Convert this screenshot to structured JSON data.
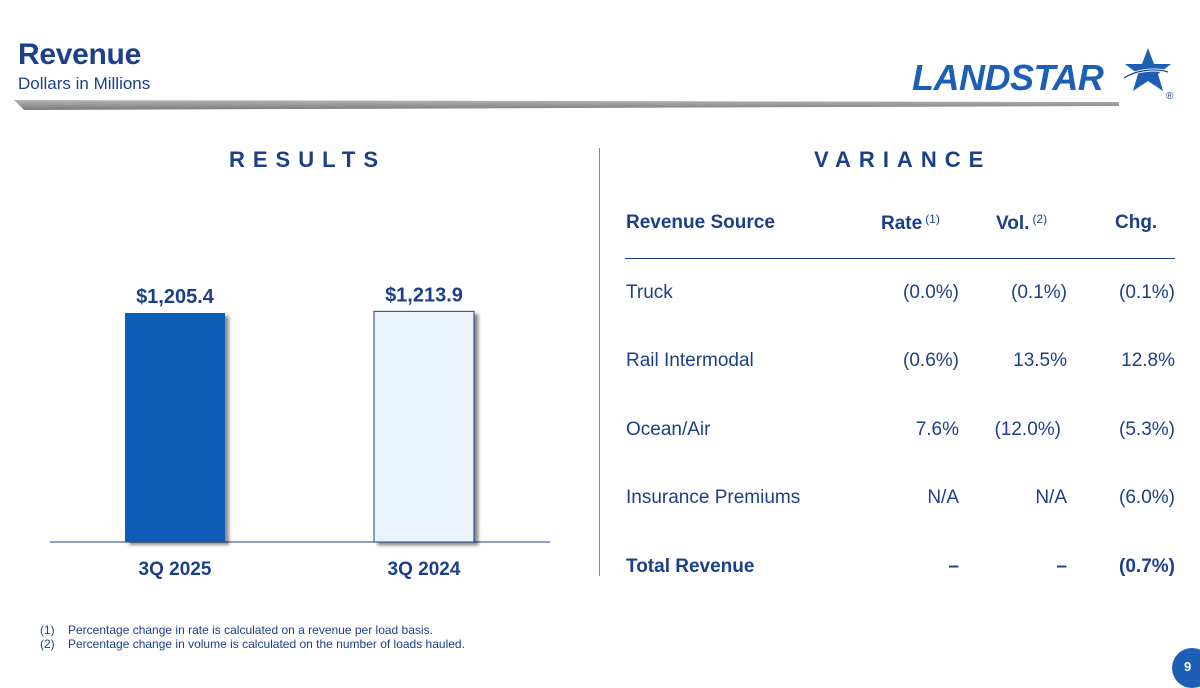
{
  "header": {
    "title": "Revenue",
    "subtitle": "Dollars in Millions",
    "logo_text": "LANDSTAR",
    "trademark": "®"
  },
  "results": {
    "title": "RESULTS"
  },
  "variance": {
    "title": "VARIANCE",
    "columns": {
      "source": "Revenue Source",
      "rate": "Rate",
      "rate_note": "(1)",
      "vol": "Vol.",
      "vol_note": "(2)",
      "chg": "Chg."
    },
    "rows": [
      {
        "source": "Truck",
        "rate": "(0.0%)",
        "vol": "(0.1%)",
        "chg": "(0.1%)"
      },
      {
        "source": "Rail Intermodal",
        "rate": "(0.6%)",
        "vol": "13.5%",
        "chg": "12.8%"
      },
      {
        "source": "Ocean/Air",
        "rate": "7.6%",
        "vol": "(12.0%)",
        "chg": "(5.3%)"
      },
      {
        "source": "Insurance Premiums",
        "rate": "N/A",
        "vol": "N/A",
        "chg": "(6.0%)"
      },
      {
        "source": "Total Revenue",
        "rate": "–",
        "vol": "–",
        "chg": "(0.7%)"
      }
    ]
  },
  "chart_data": {
    "type": "bar",
    "title": "RESULTS",
    "categories": [
      "3Q 2025",
      "3Q 2024"
    ],
    "values": [
      1205.4,
      1213.9
    ],
    "data_labels": [
      "$1,205.4",
      "$1,213.9"
    ],
    "ylabel": "Dollars in Millions",
    "ylim": [
      0,
      1400
    ],
    "colors": [
      "#0a5db6",
      "#eaf3fb"
    ],
    "grid": false
  },
  "footnotes": [
    {
      "num": "(1)",
      "text": "Percentage change in rate is calculated on a revenue per load basis."
    },
    {
      "num": "(2)",
      "text": "Percentage change in volume is calculated on the number of loads hauled."
    }
  ],
  "page_number": "9",
  "colors": {
    "navy": "#1c3f8a",
    "brand_blue": "#1c5fb4",
    "bar_dark": "#0a5db6",
    "bar_light": "#eaf3fb"
  }
}
